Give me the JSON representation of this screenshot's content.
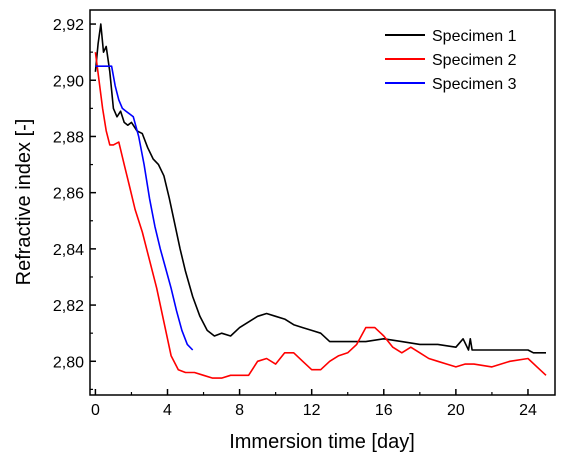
{
  "chart_data": {
    "type": "line",
    "xlabel": "Immersion time [day]",
    "ylabel": "Refractive index [-]",
    "xlim": [
      -0.3,
      25.5
    ],
    "ylim": [
      2.788,
      2.925
    ],
    "x_ticks": [
      0,
      4,
      8,
      12,
      16,
      20,
      24
    ],
    "y_ticks": [
      2.8,
      2.82,
      2.84,
      2.86,
      2.88,
      2.9,
      2.92
    ],
    "x_tick_labels": [
      "0",
      "4",
      "8",
      "12",
      "16",
      "20",
      "24"
    ],
    "y_tick_labels": [
      "2,80",
      "2,82",
      "2,84",
      "2,86",
      "2,88",
      "2,90",
      "2,92"
    ],
    "grid": false,
    "legend_position": "top-right",
    "series": [
      {
        "name": "Specimen 1",
        "color": "#000000",
        "x": [
          0,
          0.15,
          0.3,
          0.45,
          0.6,
          0.8,
          1.0,
          1.2,
          1.4,
          1.6,
          1.8,
          2.0,
          2.3,
          2.6,
          2.9,
          3.2,
          3.5,
          3.8,
          4.1,
          4.4,
          4.7,
          5.0,
          5.4,
          5.8,
          6.2,
          6.6,
          7.0,
          7.5,
          8.0,
          8.5,
          9.0,
          9.5,
          10.0,
          10.5,
          11.0,
          11.5,
          12.0,
          12.5,
          13.0,
          14.0,
          15.0,
          16.0,
          17.0,
          18.0,
          19.0,
          20.0,
          20.4,
          20.7,
          20.8,
          20.9,
          21.5,
          22.0,
          23.0,
          24.0,
          24.3,
          25.0
        ],
        "y": [
          2.903,
          2.913,
          2.92,
          2.91,
          2.912,
          2.903,
          2.89,
          2.887,
          2.889,
          2.885,
          2.884,
          2.885,
          2.882,
          2.881,
          2.876,
          2.872,
          2.87,
          2.866,
          2.858,
          2.849,
          2.84,
          2.832,
          2.823,
          2.816,
          2.811,
          2.809,
          2.81,
          2.809,
          2.812,
          2.814,
          2.816,
          2.817,
          2.816,
          2.815,
          2.813,
          2.812,
          2.811,
          2.81,
          2.807,
          2.807,
          2.807,
          2.808,
          2.807,
          2.806,
          2.806,
          2.805,
          2.808,
          2.804,
          2.808,
          2.804,
          2.804,
          2.804,
          2.804,
          2.804,
          2.803,
          2.803
        ]
      },
      {
        "name": "Specimen 2",
        "color": "#ff0000",
        "x": [
          0,
          0.1,
          0.2,
          0.4,
          0.6,
          0.8,
          1.0,
          1.3,
          1.6,
          1.9,
          2.2,
          2.6,
          3.0,
          3.4,
          3.8,
          4.2,
          4.6,
          5.0,
          5.5,
          6.0,
          6.5,
          7.0,
          7.5,
          8.0,
          8.5,
          9.0,
          9.5,
          10.0,
          10.5,
          11.0,
          11.5,
          12.0,
          12.5,
          13.0,
          13.5,
          14.0,
          14.5,
          15.0,
          15.5,
          16.0,
          16.5,
          17.0,
          17.5,
          18.0,
          18.5,
          19.0,
          19.5,
          20.0,
          20.5,
          21.0,
          22.0,
          23.0,
          24.0,
          24.5,
          25.0
        ],
        "y": [
          2.91,
          2.905,
          2.9,
          2.89,
          2.882,
          2.877,
          2.877,
          2.878,
          2.87,
          2.862,
          2.854,
          2.846,
          2.836,
          2.826,
          2.814,
          2.802,
          2.797,
          2.796,
          2.796,
          2.795,
          2.794,
          2.794,
          2.795,
          2.795,
          2.795,
          2.8,
          2.801,
          2.799,
          2.803,
          2.803,
          2.8,
          2.797,
          2.797,
          2.8,
          2.802,
          2.803,
          2.806,
          2.812,
          2.812,
          2.809,
          2.805,
          2.803,
          2.805,
          2.803,
          2.801,
          2.8,
          2.799,
          2.798,
          2.799,
          2.799,
          2.798,
          2.8,
          2.801,
          2.798,
          2.795
        ]
      },
      {
        "name": "Specimen 3",
        "color": "#0000ff",
        "x": [
          0,
          0.3,
          0.6,
          0.9,
          1.1,
          1.3,
          1.5,
          1.7,
          1.9,
          2.1,
          2.4,
          2.7,
          3.0,
          3.3,
          3.6,
          3.9,
          4.2,
          4.5,
          4.8,
          5.1,
          5.4
        ],
        "y": [
          2.905,
          2.905,
          2.905,
          2.905,
          2.898,
          2.893,
          2.89,
          2.889,
          2.888,
          2.887,
          2.88,
          2.87,
          2.858,
          2.848,
          2.84,
          2.833,
          2.826,
          2.818,
          2.811,
          2.806,
          2.804
        ]
      }
    ]
  }
}
